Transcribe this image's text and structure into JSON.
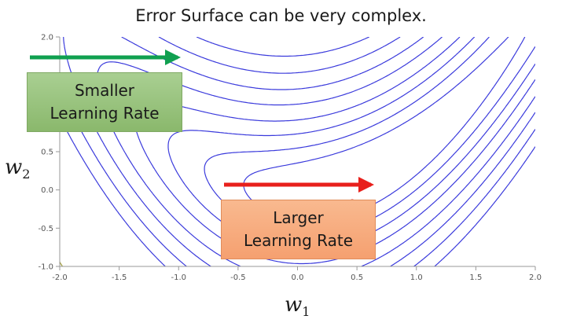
{
  "title": "Error Surface can be very complex.",
  "chart_data": {
    "type": "contour",
    "xlabel_main": "w",
    "xlabel_sub": "1",
    "ylabel_main": "w",
    "ylabel_sub": "2",
    "xlim": [
      -2.0,
      2.0
    ],
    "ylim": [
      -1.0,
      2.0
    ],
    "x_ticks": [
      "-2.0",
      "-1.5",
      "-1.0",
      "-0.5",
      "0.0",
      "0.5",
      "1.0",
      "1.5",
      "2.0"
    ],
    "y_ticks": [
      "-1.0",
      "-0.5",
      "0.0",
      "0.5",
      "1.0",
      "1.5",
      "2.0"
    ],
    "contour_levels": [
      0.3,
      0.6,
      1.0,
      1.5,
      2.2,
      3.0,
      4.0,
      5.2
    ],
    "contour_color": "#3a3adc",
    "outer_curve_color": "#a4a040",
    "low_curve_color": "#e0483c",
    "marked_point": {
      "x": 0.46,
      "y": -0.16,
      "color": "#e02020"
    }
  },
  "annotations": {
    "smaller": {
      "label": "Smaller\nLearning Rate",
      "arrow_color": "#10a050"
    },
    "larger": {
      "label": "Larger\nLearning Rate",
      "arrow_color": "#e8201c"
    }
  }
}
